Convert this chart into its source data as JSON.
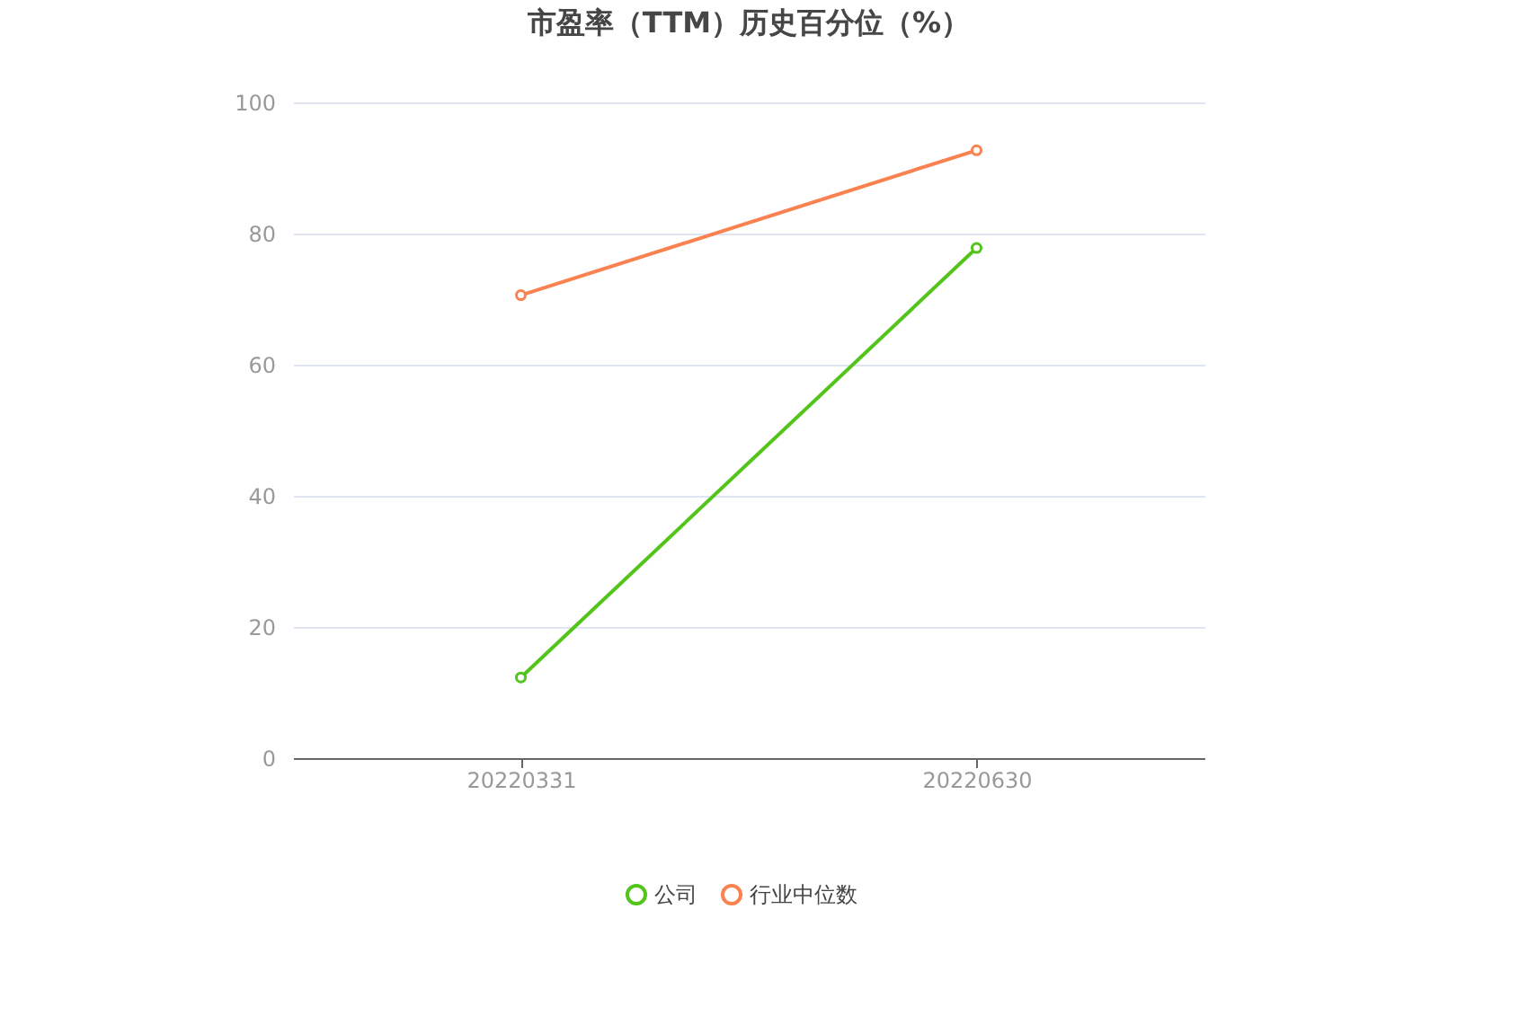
{
  "chart_data": {
    "type": "line",
    "title": "市盈率（TTM）历史百分位（%）",
    "categories": [
      "20220331",
      "20220630"
    ],
    "series": [
      {
        "name": "公司",
        "color": "#52c41a",
        "values": [
          12.3,
          77.8
        ]
      },
      {
        "name": "行业中位数",
        "color": "#fa8150",
        "values": [
          70.6,
          92.7
        ]
      }
    ],
    "ylim": [
      0,
      100
    ],
    "yticks": [
      0,
      20,
      40,
      60,
      80,
      100
    ],
    "grid": "y",
    "legend": "bottom",
    "marker": "circle",
    "line_style": "solid"
  }
}
